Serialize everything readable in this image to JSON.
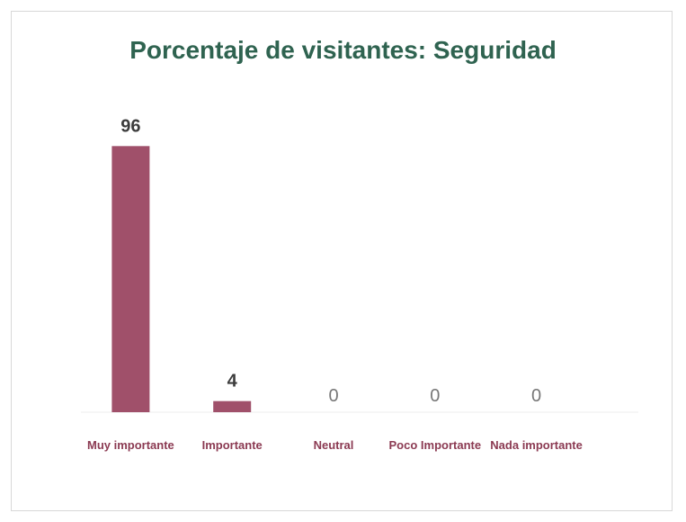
{
  "chart_data": {
    "type": "bar",
    "title": "Porcentaje de visitantes: Seguridad",
    "categories": [
      "Muy importante",
      "Importante",
      "Neutral",
      "Poco Importante",
      "Nada importante"
    ],
    "values": [
      96,
      4,
      0,
      0,
      0
    ],
    "color": "#a0506a",
    "ylim": [
      0,
      100
    ]
  }
}
